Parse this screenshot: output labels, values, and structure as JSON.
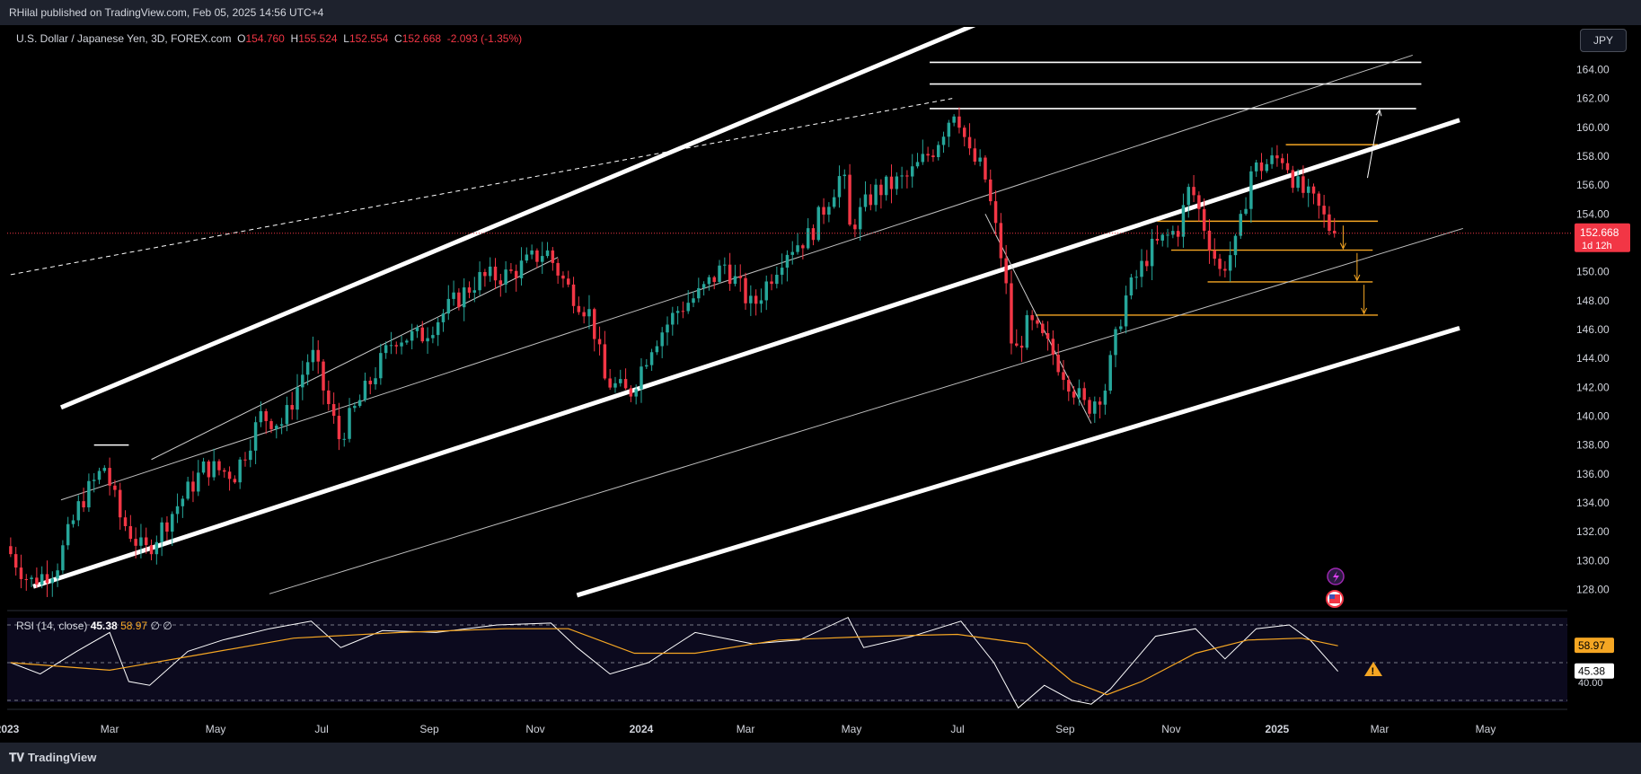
{
  "header": {
    "published_by": "RHilal published on TradingView.com, Feb 05, 2025 14:56 UTC+4"
  },
  "legend": {
    "symbol": "U.S. Dollar / Japanese Yen, 3D, FOREX.com",
    "open_label": "O",
    "open": "154.760",
    "high_label": "H",
    "high": "155.524",
    "low_label": "L",
    "low": "152.554",
    "close_label": "C",
    "close": "152.668",
    "change": "-2.093 (-1.35%)"
  },
  "currency_button": "JPY",
  "price_tag": {
    "price": "152.668",
    "countdown": "1d 12h"
  },
  "rsi": {
    "label": "RSI (14, close)",
    "value": "45.38",
    "ma_value": "58.97",
    "extra": "∅ ∅",
    "axis_label": "40.00"
  },
  "footer": {
    "logo_text": "TradingView"
  },
  "colors": {
    "up": "#26a69a",
    "down": "#f23645",
    "trend": "#ffffff",
    "level": "#f5a623",
    "rsi_ma": "#f5a623",
    "background": "#000000"
  },
  "chart_data": {
    "type": "candlestick",
    "symbol": "USDJPY",
    "timeframe": "3D",
    "y_range": [
      126.5,
      167.5
    ],
    "y_ticks": [
      128,
      130,
      132,
      134,
      136,
      138,
      140,
      142,
      144,
      146,
      148,
      150,
      152,
      154,
      156,
      158,
      160,
      162,
      164
    ],
    "x_ticks": [
      "2023",
      "Mar",
      "May",
      "Jul",
      "Sep",
      "Nov",
      "2024",
      "Mar",
      "May",
      "Jul",
      "Sep",
      "Nov",
      "2025",
      "Mar",
      "May"
    ],
    "price_path": [
      [
        "2023-01-03",
        131.0
      ],
      [
        "2023-01-17",
        128.5
      ],
      [
        "2023-02-01",
        129.5
      ],
      [
        "2023-02-15",
        134.0
      ],
      [
        "2023-03-01",
        136.5
      ],
      [
        "2023-03-10",
        133.0
      ],
      [
        "2023-03-24",
        130.5
      ],
      [
        "2023-04-10",
        133.5
      ],
      [
        "2023-04-28",
        136.5
      ],
      [
        "2023-05-15",
        136.0
      ],
      [
        "2023-05-30",
        140.0
      ],
      [
        "2023-06-12",
        139.5
      ],
      [
        "2023-06-28",
        144.5
      ],
      [
        "2023-07-14",
        138.5
      ],
      [
        "2023-07-28",
        141.5
      ],
      [
        "2023-08-15",
        145.5
      ],
      [
        "2023-08-30",
        145.5
      ],
      [
        "2023-09-15",
        147.5
      ],
      [
        "2023-10-02",
        149.5
      ],
      [
        "2023-10-20",
        149.8
      ],
      [
        "2023-11-10",
        151.5
      ],
      [
        "2023-11-22",
        149.0
      ],
      [
        "2023-12-06",
        147.0
      ],
      [
        "2023-12-14",
        142.5
      ],
      [
        "2023-12-28",
        141.5
      ],
      [
        "2024-01-10",
        145.0
      ],
      [
        "2024-01-26",
        147.5
      ],
      [
        "2024-02-07",
        148.5
      ],
      [
        "2024-02-21",
        150.5
      ],
      [
        "2024-03-08",
        147.5
      ],
      [
        "2024-03-27",
        151.5
      ],
      [
        "2024-04-10",
        152.5
      ],
      [
        "2024-04-29",
        157.0
      ],
      [
        "2024-05-03",
        153.0
      ],
      [
        "2024-05-17",
        155.5
      ],
      [
        "2024-06-05",
        156.5
      ],
      [
        "2024-06-20",
        158.5
      ],
      [
        "2024-07-03",
        161.5
      ],
      [
        "2024-07-11",
        158.0
      ],
      [
        "2024-07-19",
        157.0
      ],
      [
        "2024-07-31",
        150.0
      ],
      [
        "2024-08-05",
        144.0
      ],
      [
        "2024-08-14",
        146.5
      ],
      [
        "2024-08-27",
        144.5
      ],
      [
        "2024-09-16",
        140.5
      ],
      [
        "2024-09-27",
        142.0
      ],
      [
        "2024-10-08",
        148.0
      ],
      [
        "2024-10-23",
        151.5
      ],
      [
        "2024-11-08",
        153.0
      ],
      [
        "2024-11-15",
        156.0
      ],
      [
        "2024-12-02",
        150.0
      ],
      [
        "2024-12-12",
        152.0
      ],
      [
        "2024-12-20",
        157.0
      ],
      [
        "2025-01-08",
        158.0
      ],
      [
        "2025-01-15",
        156.0
      ],
      [
        "2025-01-27",
        154.5
      ],
      [
        "2025-02-05",
        152.668
      ]
    ],
    "trendlines": [
      {
        "from": [
          "2023-01-16",
          128.2
        ],
        "to": [
          "2025-04-16",
          160.5
        ],
        "weight": "thick"
      },
      {
        "from": [
          "2023-02-01",
          140.6
        ],
        "to": [
          "2024-11-25",
          174.0
        ],
        "weight": "thick"
      },
      {
        "from": [
          "2023-11-25",
          127.6
        ],
        "to": [
          "2025-04-16",
          146.1
        ],
        "weight": "thick"
      },
      {
        "from": [
          "2023-02-01",
          134.2
        ],
        "to": [
          "2025-03-20",
          165.0
        ],
        "weight": "thin"
      },
      {
        "from": [
          "2023-06-01",
          127.7
        ],
        "to": [
          "2025-04-18",
          153.0
        ],
        "weight": "thin"
      },
      {
        "from": [
          "2023-01-03",
          149.8
        ],
        "to": [
          "2024-06-28",
          162.0
        ],
        "weight": "dashed"
      }
    ],
    "horizontal_levels": [
      {
        "price": 164.5,
        "color": "white"
      },
      {
        "price": 163.0,
        "color": "white"
      },
      {
        "price": 161.3,
        "color": "white"
      },
      {
        "price": 158.8,
        "color": "orange"
      },
      {
        "price": 153.5,
        "color": "orange"
      },
      {
        "price": 151.5,
        "color": "orange"
      },
      {
        "price": 149.3,
        "color": "orange"
      },
      {
        "price": 147.0,
        "color": "orange"
      }
    ],
    "rsi": {
      "period": 14,
      "latest": 45.38,
      "ma_latest": 58.97,
      "levels": [
        70,
        50,
        30
      ],
      "path": [
        [
          "2023-01-03",
          50
        ],
        [
          "2023-01-20",
          44
        ],
        [
          "2023-02-10",
          56
        ],
        [
          "2023-03-01",
          66
        ],
        [
          "2023-03-12",
          40
        ],
        [
          "2023-03-24",
          38
        ],
        [
          "2023-04-15",
          56
        ],
        [
          "2023-05-05",
          62
        ],
        [
          "2023-06-01",
          68
        ],
        [
          "2023-06-25",
          72
        ],
        [
          "2023-07-12",
          58
        ],
        [
          "2023-08-05",
          67
        ],
        [
          "2023-09-05",
          66
        ],
        [
          "2023-10-10",
          70
        ],
        [
          "2023-11-10",
          71
        ],
        [
          "2023-11-25",
          58
        ],
        [
          "2023-12-14",
          44
        ],
        [
          "2024-01-05",
          50
        ],
        [
          "2024-02-01",
          66
        ],
        [
          "2024-03-05",
          60
        ],
        [
          "2024-04-01",
          62
        ],
        [
          "2024-04-29",
          74
        ],
        [
          "2024-05-08",
          58
        ],
        [
          "2024-06-05",
          64
        ],
        [
          "2024-07-03",
          72
        ],
        [
          "2024-07-22",
          50
        ],
        [
          "2024-08-05",
          26
        ],
        [
          "2024-08-20",
          38
        ],
        [
          "2024-09-05",
          30
        ],
        [
          "2024-09-16",
          28
        ],
        [
          "2024-09-27",
          36
        ],
        [
          "2024-10-23",
          64
        ],
        [
          "2024-11-15",
          68
        ],
        [
          "2024-12-02",
          52
        ],
        [
          "2024-12-20",
          68
        ],
        [
          "2025-01-08",
          70
        ],
        [
          "2025-01-20",
          62
        ],
        [
          "2025-02-05",
          45.38
        ]
      ],
      "ma_path": [
        [
          "2023-01-03",
          50
        ],
        [
          "2023-03-01",
          46
        ],
        [
          "2023-04-20",
          54
        ],
        [
          "2023-06-15",
          63
        ],
        [
          "2023-08-15",
          66
        ],
        [
          "2023-10-15",
          68
        ],
        [
          "2023-11-20",
          68
        ],
        [
          "2023-12-28",
          55
        ],
        [
          "2024-02-01",
          55
        ],
        [
          "2024-03-20",
          62
        ],
        [
          "2024-05-15",
          64
        ],
        [
          "2024-07-01",
          65
        ],
        [
          "2024-08-10",
          60
        ],
        [
          "2024-09-05",
          40
        ],
        [
          "2024-09-25",
          33
        ],
        [
          "2024-10-15",
          40
        ],
        [
          "2024-11-15",
          55
        ],
        [
          "2024-12-15",
          62
        ],
        [
          "2025-01-15",
          63
        ],
        [
          "2025-02-05",
          58.97
        ]
      ]
    }
  }
}
